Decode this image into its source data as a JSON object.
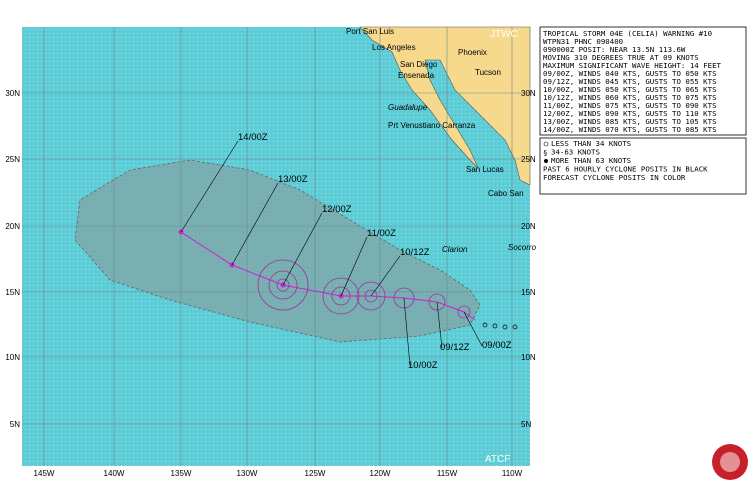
{
  "header": {
    "agency": "JTWC",
    "source": "ATCF"
  },
  "lon_labels": [
    "145W",
    "140W",
    "135W",
    "130W",
    "125W",
    "120W",
    "115W",
    "110W"
  ],
  "lat_labels": [
    "30N",
    "25N",
    "20N",
    "15N",
    "10N",
    "5N"
  ],
  "places": [
    "Port San Luis",
    "Los Angeles",
    "Phoenix",
    "San Diego",
    "Ensenada",
    "Tucson",
    "Guadalupe",
    "Prt Venustiano Carranza",
    "San Lucas",
    "Cabo San",
    "Clarion",
    "Socorro"
  ],
  "forecast_labels": [
    "14/00Z",
    "13/00Z",
    "12/00Z",
    "11/00Z",
    "10/12Z",
    "10/00Z",
    "09/12Z",
    "09/00Z"
  ],
  "warning": [
    "TROPICAL STORM 04E (CELIA) WARNING #10",
    "WTPN31 PHNC 090400",
    "090000Z POSIT: NEAR 13.5N 113.6W",
    "MOVING 310 DEGREES TRUE AT 09 KNOTS",
    "MAXIMUM SIGNIFICANT WAVE HEIGHT: 14 FEET",
    "09/00Z, WINDS 040 KTS, GUSTS TO 050 KTS",
    "09/12Z, WINDS 045 KTS, GUSTS TO 055 KTS",
    "10/00Z, WINDS 050 KTS, GUSTS TO 065 KTS",
    "10/12Z, WINDS 060 KTS, GUSTS TO 075 KTS",
    "11/00Z, WINDS 075 KTS, GUSTS TO 090 KTS",
    "12/00Z, WINDS 090 KTS, GUSTS TO 110 KTS",
    "13/00Z, WINDS 085 KTS, GUSTS TO 105 KTS",
    "14/00Z, WINDS 070 KTS, GUSTS TO 085 KTS"
  ],
  "legend": [
    "LESS THAN 34 KNOTS",
    "34-63 KNOTS",
    "MORE THAN 63 KNOTS",
    "PAST 6 HOURLY CYCLONE POSITS IN BLACK",
    "FORECAST CYCLONE POSITS IN COLOR"
  ]
}
